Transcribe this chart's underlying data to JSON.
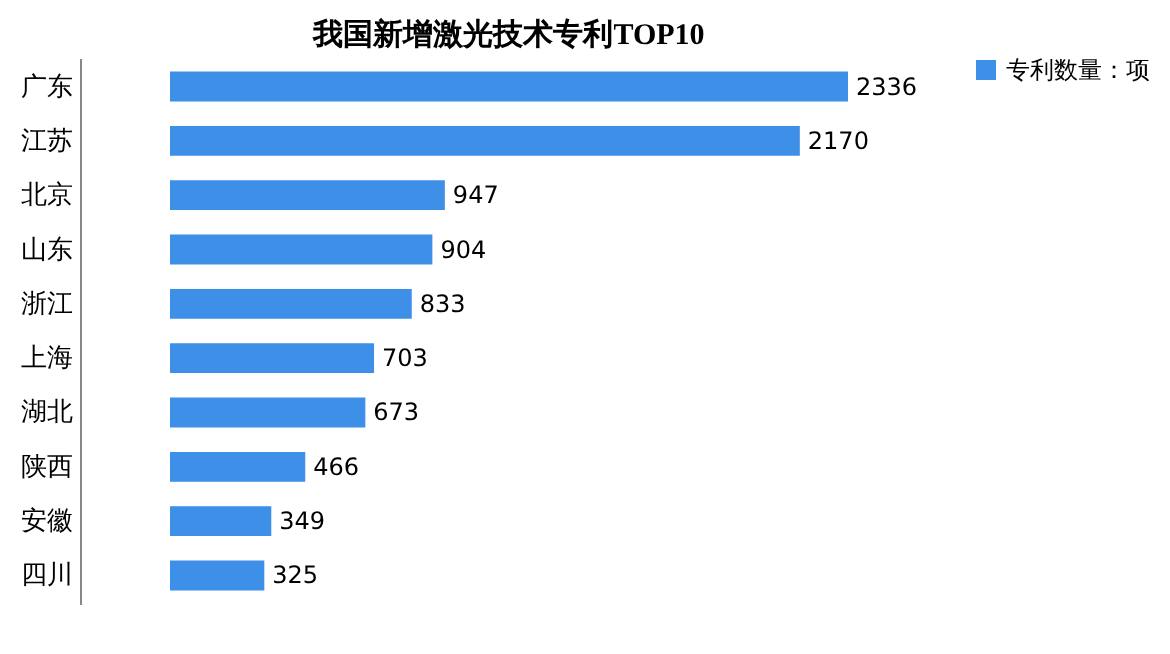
{
  "chart_data": {
    "type": "bar",
    "orientation": "horizontal",
    "title": "我国新增激光技术专利TOP10",
    "categories": [
      "广东",
      "江苏",
      "北京",
      "山东",
      "浙江",
      "上海",
      "湖北",
      "陕西",
      "安徽",
      "四川"
    ],
    "series": [
      {
        "name": "专利数量：项",
        "color": "#3d8fe8",
        "values": [
          2336,
          2170,
          947,
          904,
          833,
          703,
          673,
          466,
          349,
          325
        ]
      }
    ],
    "data_labels": true,
    "legend": "right",
    "grid": false
  }
}
